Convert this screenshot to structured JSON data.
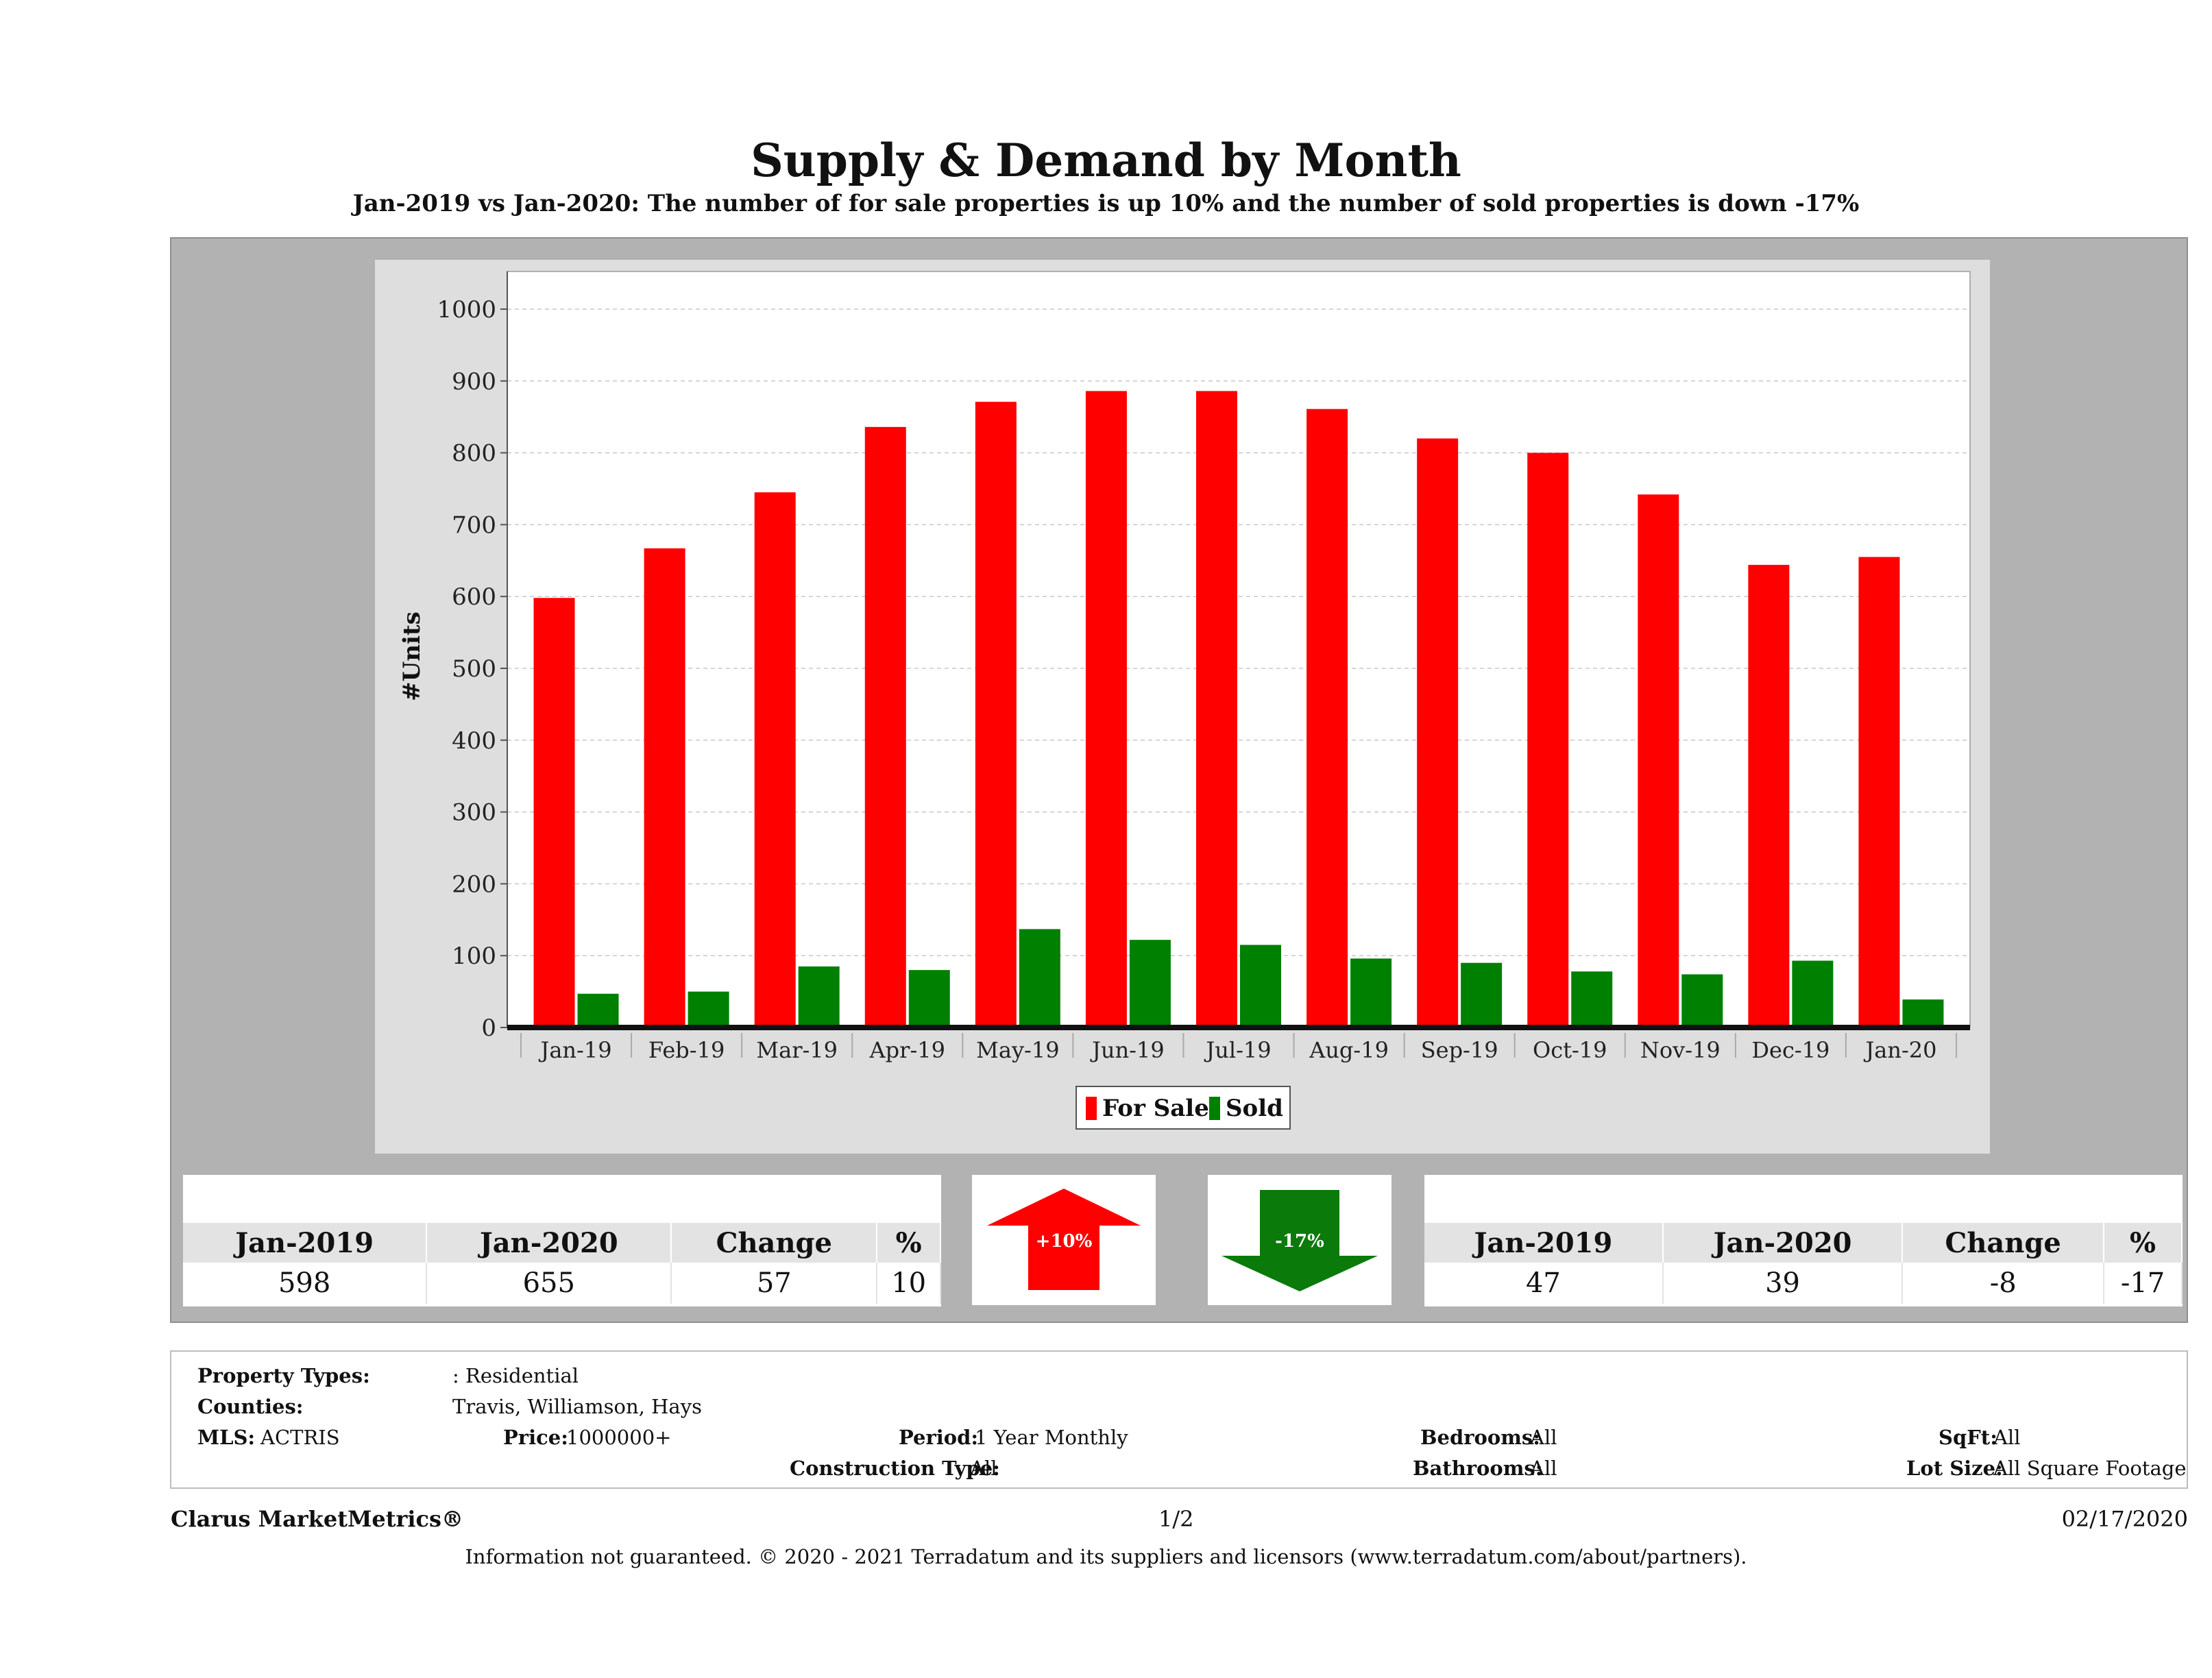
{
  "title": "Supply & Demand by Month",
  "subtitle": "Jan-2019 vs Jan-2020: The number of for sale properties is up 10% and the number of sold properties is down -17%",
  "chart_data": {
    "type": "bar",
    "categories": [
      "Jan-19",
      "Feb-19",
      "Mar-19",
      "Apr-19",
      "May-19",
      "Jun-19",
      "Jul-19",
      "Aug-19",
      "Sep-19",
      "Oct-19",
      "Nov-19",
      "Dec-19",
      "Jan-20"
    ],
    "series": [
      {
        "name": "For Sale",
        "color": "#ff0000",
        "values": [
          598,
          667,
          745,
          836,
          871,
          886,
          886,
          861,
          820,
          800,
          742,
          644,
          655
        ]
      },
      {
        "name": "Sold",
        "color": "#008000",
        "values": [
          47,
          50,
          85,
          80,
          137,
          122,
          115,
          96,
          90,
          78,
          74,
          93,
          39
        ]
      }
    ],
    "ylabel": "#Units",
    "xlabel": "",
    "ylim": [
      0,
      1000
    ],
    "yticks": [
      0,
      100,
      200,
      300,
      400,
      500,
      600,
      700,
      800,
      900,
      1000
    ],
    "grid": true,
    "legend": "bottom-center"
  },
  "for_sale_summary": {
    "headers": [
      "Jan-2019",
      "Jan-2020",
      "Change",
      "%"
    ],
    "values": [
      "598",
      "655",
      "57",
      "10"
    ]
  },
  "sold_summary": {
    "headers": [
      "Jan-2019",
      "Jan-2020",
      "Change",
      "%"
    ],
    "values": [
      "47",
      "39",
      "-8",
      "-17"
    ]
  },
  "arrows": {
    "up_label": "+10%",
    "up_color": "#ff0000",
    "down_label": "-17%",
    "down_color": "#0a7a0a"
  },
  "properties": {
    "property_types_label": "Property Types:",
    "property_types_value": ": Residential",
    "counties_label": "Counties:",
    "counties_value": "Travis, Williamson, Hays",
    "mls_label": "MLS:",
    "mls_value": "ACTRIS",
    "price_label": "Price:",
    "price_value": "1000000+",
    "period_label": "Period:",
    "period_value": "1 Year Monthly",
    "construction_label": "Construction Type:",
    "construction_value": "All",
    "bedrooms_label": "Bedrooms:",
    "bedrooms_value": "All",
    "bathrooms_label": "Bathrooms:",
    "bathrooms_value": "All",
    "sqft_label": "SqFt:",
    "sqft_value": "All",
    "lot_label": "Lot Size:",
    "lot_value": "All Square Footage"
  },
  "footer": {
    "brand": "Clarus MarketMetrics®",
    "page": "1/2",
    "date": "02/17/2020",
    "note": "Information not guaranteed. © 2020 - 2021 Terradatum and its suppliers and licensors (www.terradatum.com/about/partners)."
  }
}
